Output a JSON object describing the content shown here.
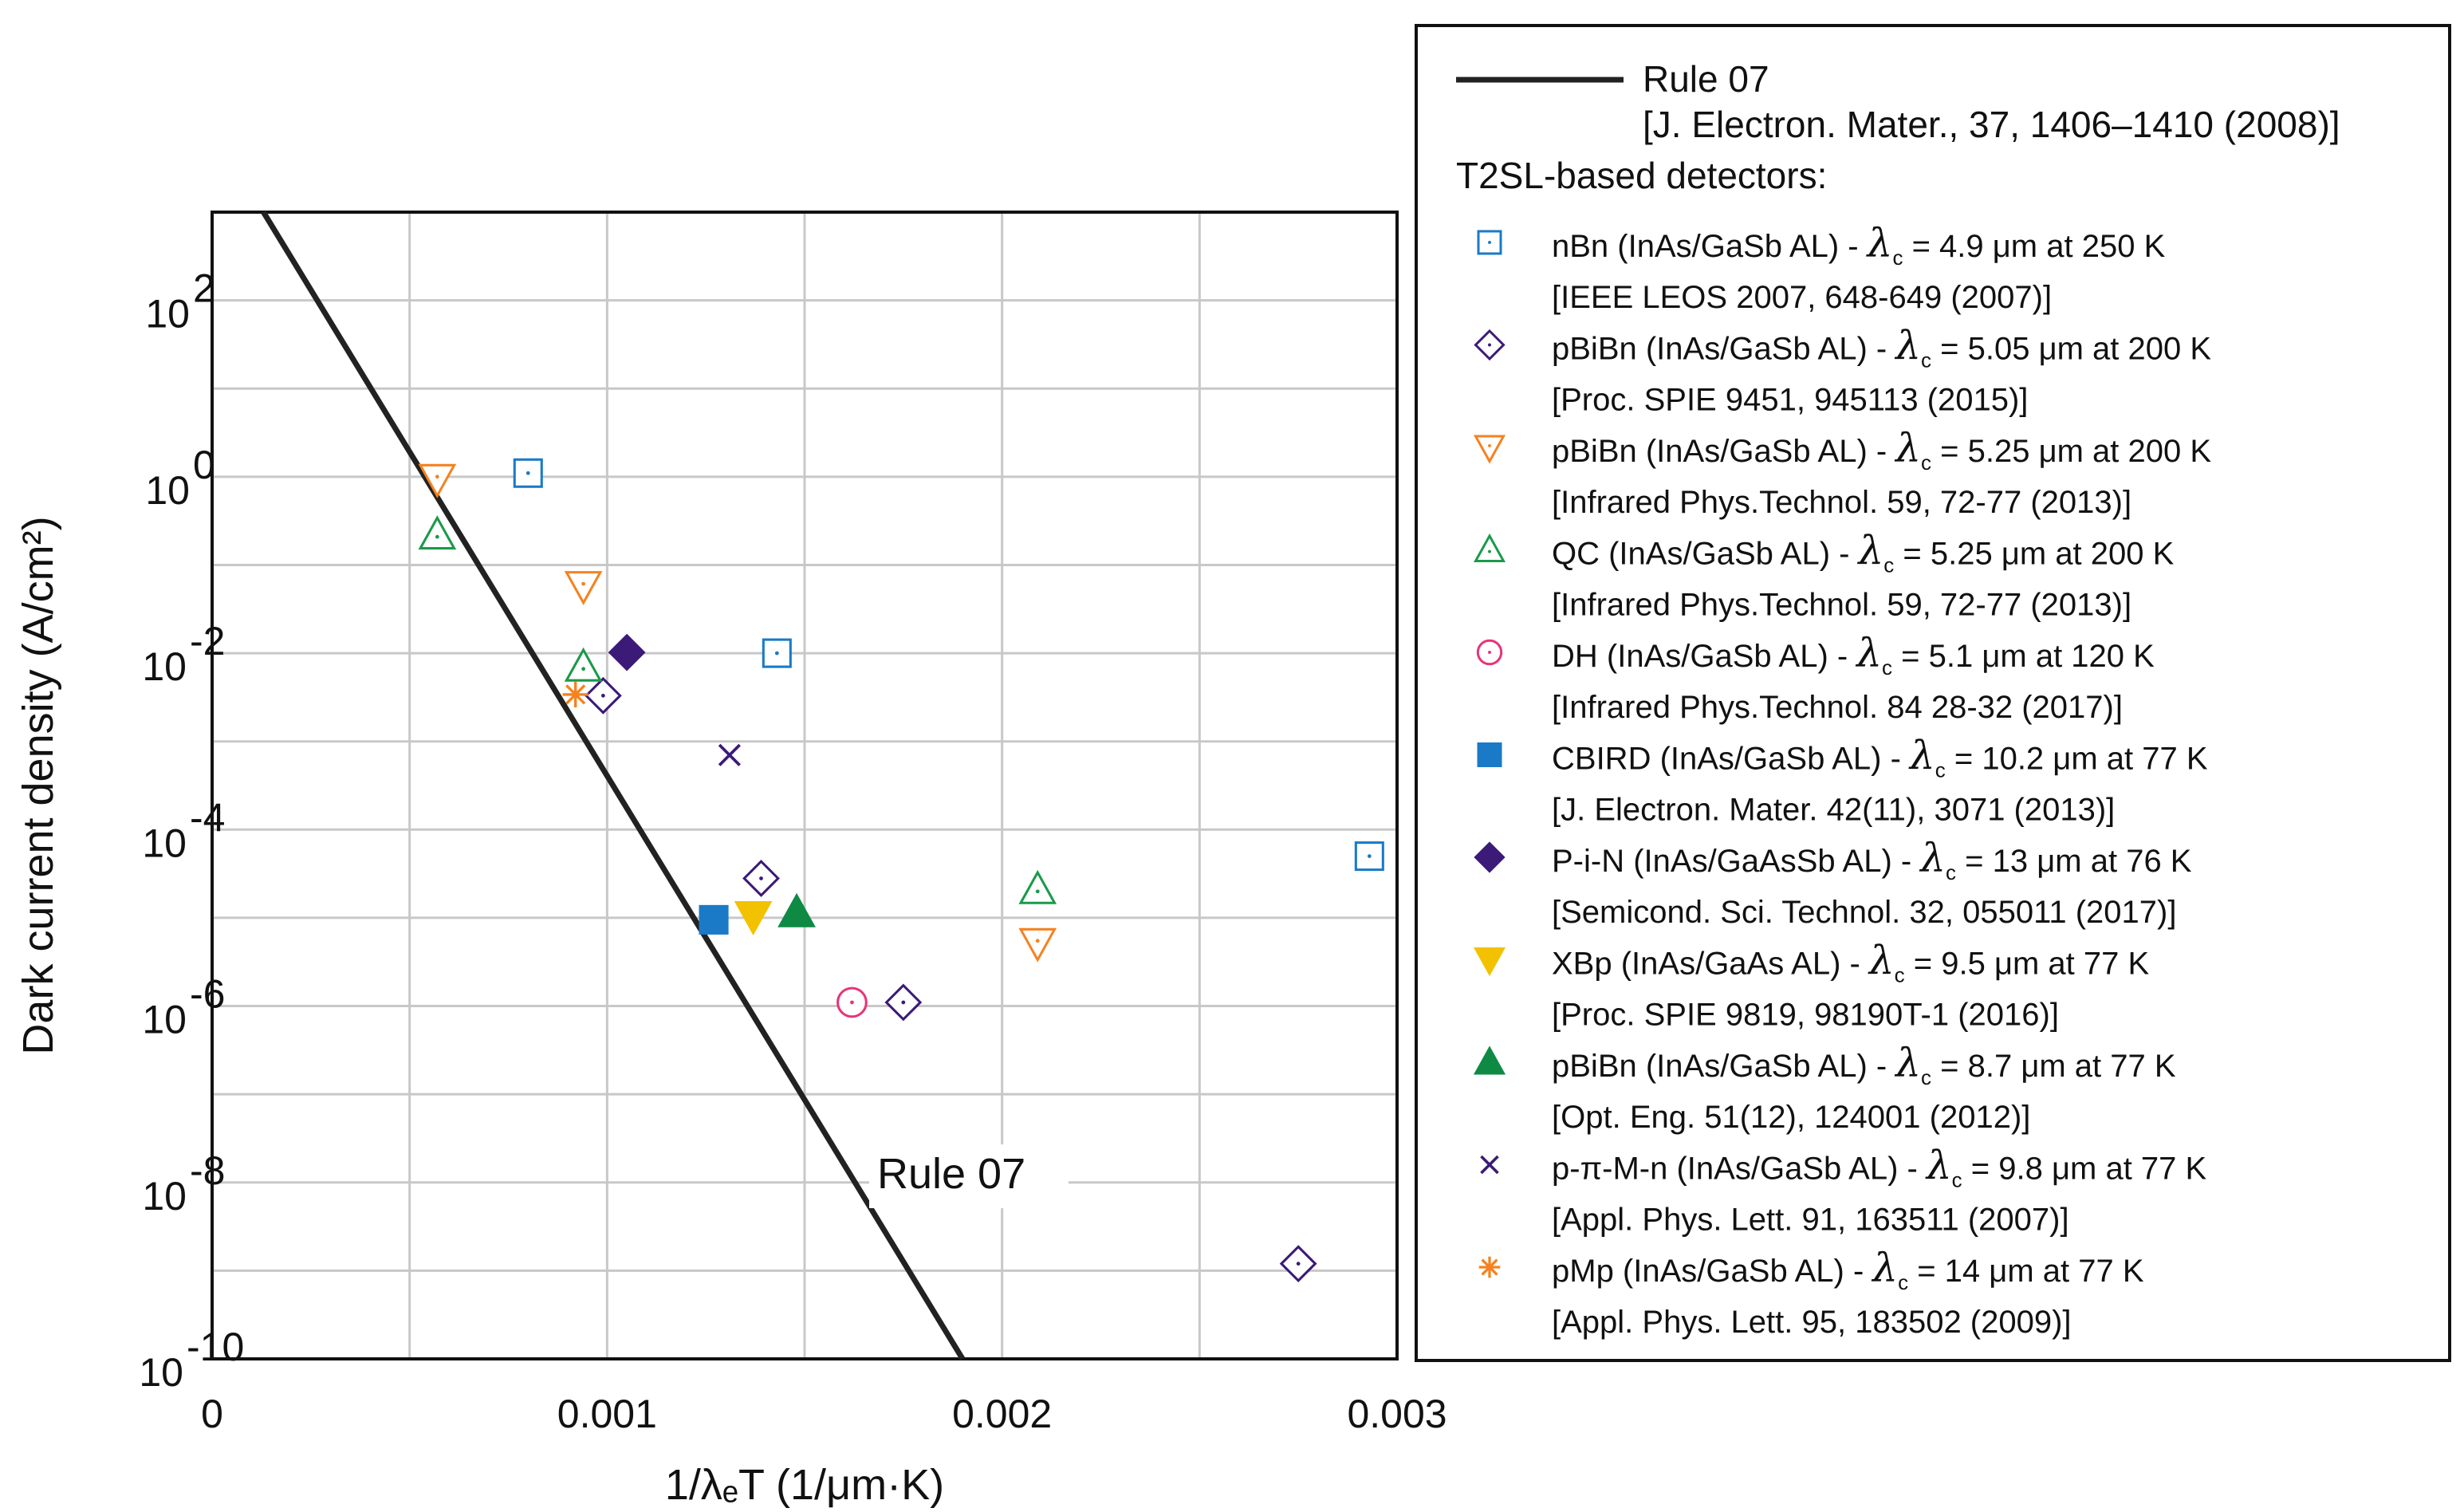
{
  "chart_data": {
    "type": "scatter",
    "ylabel": "Dark current density (A/cm²)",
    "xlabel": "1/λₑT (1/μm·K)",
    "xlim": [
      0,
      0.003
    ],
    "ylim_log10": [
      -10,
      3
    ],
    "x_ticks": [
      "0",
      "0.001",
      "0.002",
      "0.003"
    ],
    "y_ticks": [
      {
        "base": "10",
        "exp": "2"
      },
      {
        "base": "10",
        "exp": "0"
      },
      {
        "base": "10",
        "exp": "-2"
      },
      {
        "base": "10",
        "exp": "-4"
      },
      {
        "base": "10",
        "exp": "-6"
      },
      {
        "base": "10",
        "exp": "-8"
      },
      {
        "base": "10",
        "exp": "-10"
      }
    ],
    "grid": true,
    "rule_annotation": "Rule 07",
    "rule_line": {
      "x": [
        0.00013,
        0.0019
      ],
      "y": [
        1000,
        1e-10
      ]
    },
    "series": [
      {
        "name": "nBn (InAs/GaSb AL)",
        "marker": "square-dot",
        "color": "#1a7ac7",
        "points": [
          [
            0.0008,
            1.1
          ],
          [
            0.00143,
            0.01
          ],
          [
            0.00293,
            5e-05
          ]
        ]
      },
      {
        "name": "pBiBn (InAs/GaSb AL) 5.05",
        "marker": "diamond-dot",
        "color": "#3b1a78",
        "points": [
          [
            0.00099,
            0.0033
          ],
          [
            0.00139,
            2.8e-05
          ],
          [
            0.00175,
            1.1e-06
          ],
          [
            0.00275,
            1.2e-09
          ]
        ]
      },
      {
        "name": "pBiBn (InAs/GaSb AL) 5.25",
        "marker": "tri-down-dot",
        "color": "#f58220",
        "points": [
          [
            0.00057,
            0.95
          ],
          [
            0.00094,
            0.058
          ],
          [
            0.00209,
            5.2e-06
          ]
        ]
      },
      {
        "name": "QC (InAs/GaSb AL)",
        "marker": "tri-up-dot",
        "color": "#1a9a4a",
        "points": [
          [
            0.00057,
            0.22
          ],
          [
            0.00094,
            0.007
          ],
          [
            0.00209,
            2.1e-05
          ]
        ]
      },
      {
        "name": "DH (InAs/GaSb AL)",
        "marker": "circle-dot",
        "color": "#e8337a",
        "points": [
          [
            0.00162,
            1.1e-06
          ]
        ]
      },
      {
        "name": "CBIRD (InAs/GaSb AL)",
        "marker": "square-filled",
        "color": "#1a7ac7",
        "points": [
          [
            0.00127,
            9.5e-06
          ]
        ]
      },
      {
        "name": "P-i-N (InAs/GaAsSb AL)",
        "marker": "diamond-filled",
        "color": "#3b1a78",
        "points": [
          [
            0.00105,
            0.0102
          ]
        ]
      },
      {
        "name": "XBp (InAs/GaAs AL)",
        "marker": "tri-down-filled",
        "color": "#f2c200",
        "points": [
          [
            0.00137,
            1.05e-05
          ]
        ]
      },
      {
        "name": "pBiBn (InAs/GaSb AL) 8.7",
        "marker": "tri-up-filled",
        "color": "#0e8a45",
        "points": [
          [
            0.00148,
            1.15e-05
          ]
        ]
      },
      {
        "name": "p-π-M-n (InAs/GaSb AL)",
        "marker": "x",
        "color": "#3b1a78",
        "points": [
          [
            0.00131,
            0.0007
          ]
        ]
      },
      {
        "name": "pMp (InAs/GaSb AL)",
        "marker": "asterisk",
        "color": "#f58220",
        "points": [
          [
            0.00092,
            0.0034
          ]
        ]
      }
    ]
  },
  "legend": {
    "rule_name": "Rule 07",
    "rule_ref": "[J. Electron. Mater., 37, 1406–1410 (2008)]",
    "section_title": "T2SL-based detectors:",
    "items": [
      {
        "label": "nBn (InAs/GaSb AL) - ",
        "lam": "λ",
        "sub": "c",
        "value": " = 4.9 μm at 250 K",
        "ref": "[IEEE LEOS 2007, 648-649 (2007)]"
      },
      {
        "label": "pBiBn (InAs/GaSb AL) - ",
        "lam": "λ",
        "sub": "c",
        "value": " = 5.05 μm at 200 K",
        "ref": "[Proc. SPIE 9451, 945113 (2015)]"
      },
      {
        "label": "pBiBn (InAs/GaSb AL) - ",
        "lam": "λ",
        "sub": "c",
        "value": " = 5.25 μm at 200 K",
        "ref": "[Infrared Phys.Technol. 59, 72-77 (2013)]"
      },
      {
        "label": "QC (InAs/GaSb AL) - ",
        "lam": "λ",
        "sub": "c",
        "value": " = 5.25 μm at 200 K",
        "ref": "[Infrared Phys.Technol. 59, 72-77 (2013)]"
      },
      {
        "label": "DH (InAs/GaSb AL) - ",
        "lam": "λ",
        "sub": "c",
        "value": " = 5.1 μm at 120 K",
        "ref": "[Infrared Phys.Technol. 84 28-32 (2017)]"
      },
      {
        "label": "CBIRD (InAs/GaSb AL) - ",
        "lam": "λ",
        "sub": "c",
        "value": " = 10.2 μm at 77 K",
        "ref": "[J. Electron. Mater. 42(11), 3071 (2013)]"
      },
      {
        "label": "P-i-N (InAs/GaAsSb AL) - ",
        "lam": "λ",
        "sub": "c",
        "value": " = 13 μm at 76 K",
        "ref": "[Semicond. Sci. Technol. 32, 055011 (2017)]"
      },
      {
        "label": "XBp (InAs/GaAs AL) - ",
        "lam": "λ",
        "sub": "c",
        "value": " = 9.5 μm at 77 K",
        "ref": "[Proc. SPIE 9819, 98190T-1 (2016)]"
      },
      {
        "label": "pBiBn (InAs/GaSb AL) - ",
        "lam": "λ",
        "sub": "c",
        "value": " = 8.7 μm at 77 K",
        "ref": "[Opt. Eng. 51(12), 124001 (2012)]"
      },
      {
        "label": "p-π-M-n (InAs/GaSb AL) - ",
        "lam": "λ",
        "sub": "c",
        "value": " = 9.8 μm at 77 K",
        "ref": "[Appl. Phys. Lett. 91, 163511 (2007)]"
      },
      {
        "label": "pMp (InAs/GaSb AL) - ",
        "lam": "λ",
        "sub": "c",
        "value": " = 14 μm at 77 K",
        "ref": "[Appl. Phys. Lett. 95, 183502 (2009)]"
      }
    ]
  }
}
